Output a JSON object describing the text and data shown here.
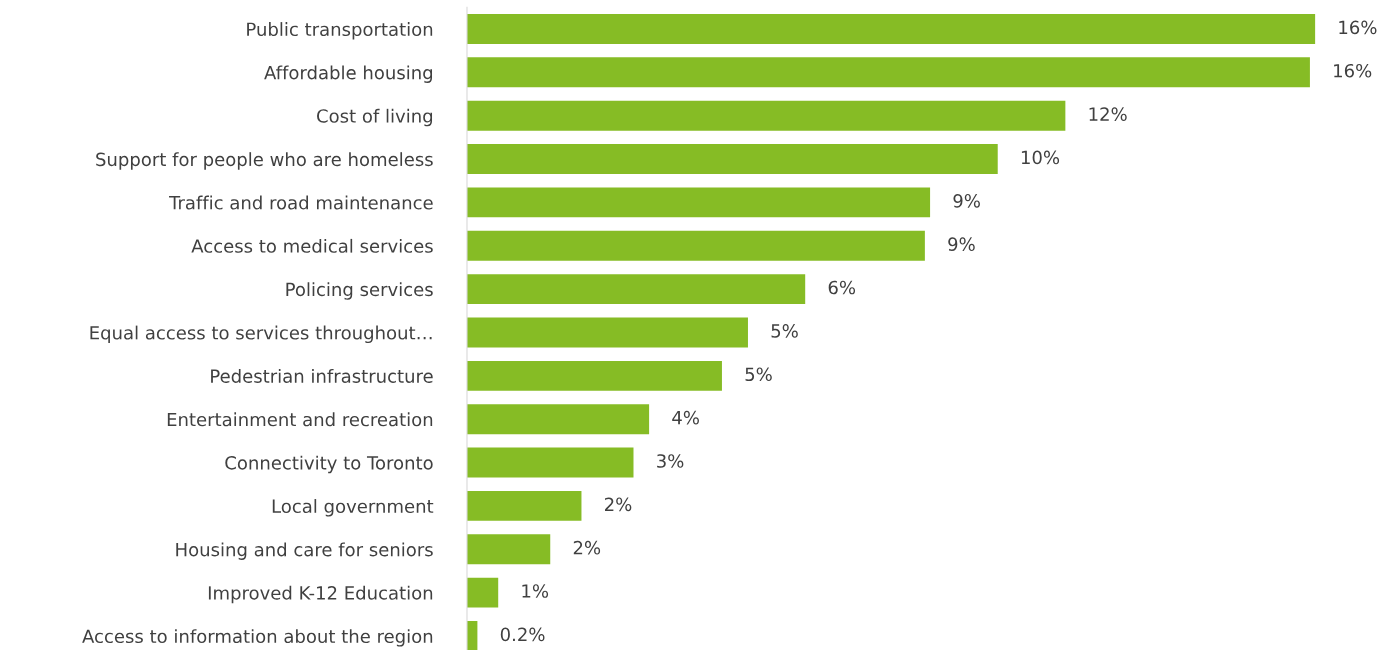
{
  "chart_data": {
    "type": "bar",
    "orientation": "horizontal",
    "categories": [
      "Public transportation",
      "Affordable housing",
      "Cost of living",
      "Support for people who are homeless",
      "Traffic and road maintenance",
      "Access to medical services",
      "Policing services",
      "Equal access to services throughout…",
      "Pedestrian infrastructure",
      "Entertainment and recreation",
      "Connectivity to Toronto",
      "Local government",
      "Housing and care for seniors",
      "Improved K-12 Education",
      "Access to information about the region"
    ],
    "values": [
      16.3,
      16.2,
      11.5,
      10.2,
      8.9,
      8.8,
      6.5,
      5.4,
      4.9,
      3.5,
      3.2,
      2.2,
      1.6,
      0.6,
      0.2
    ],
    "value_labels": [
      "16%",
      "16%",
      "12%",
      "10%",
      "9%",
      "9%",
      "6%",
      "5%",
      "5%",
      "4%",
      "3%",
      "2%",
      "2%",
      "1%",
      "0.2%"
    ],
    "color": "#86bc25",
    "tick_labels": "y",
    "grid": false,
    "legend": false
  }
}
